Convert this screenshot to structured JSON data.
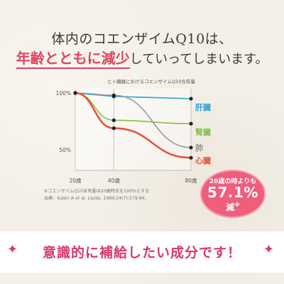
{
  "headline": {
    "line1": "体内のコエンザイムQ10は、",
    "line2_accent": "年齢とともに減少",
    "line2_rest": "していってしまいます。"
  },
  "chart_data": {
    "type": "line",
    "title": "ヒト臓器におけるコエンザイムQ10含有量",
    "x": [
      20,
      40,
      80
    ],
    "x_tick_labels": [
      "20歳",
      "40歳",
      "80歳"
    ],
    "y_tick_labels": [
      "100%",
      "50%"
    ],
    "ylim": [
      40,
      100
    ],
    "grid": "vertical",
    "series": [
      {
        "name": "肝臓",
        "color": "#2aa6d6",
        "values": [
          100,
          97,
          95
        ]
      },
      {
        "name": "腎臓",
        "color": "#83c04a",
        "values": [
          100,
          76,
          73
        ]
      },
      {
        "name": "肺",
        "color": "#9a9a9a",
        "values": [
          100,
          98,
          52
        ]
      },
      {
        "name": "心臓",
        "color": "#e8533a",
        "values": [
          100,
          69,
          43
        ]
      }
    ]
  },
  "callout": {
    "line1": "20歳の時よりも",
    "line2": "57.1%",
    "line3": "減",
    "mark": "※"
  },
  "footnotes": {
    "line1": "※コエンザイムQ10含有量は20歳時点を100%とする",
    "line2": "出典：Kalén A et al. Lipids. 1989;24(7):579-84."
  },
  "banner": {
    "text": "意識的に補給したい成分です！",
    "sparkle": "✦"
  },
  "colors": {
    "accent_pink": "#e0445e",
    "callout_bg": "#ef5f7c",
    "banner_text": "#d63b68"
  }
}
